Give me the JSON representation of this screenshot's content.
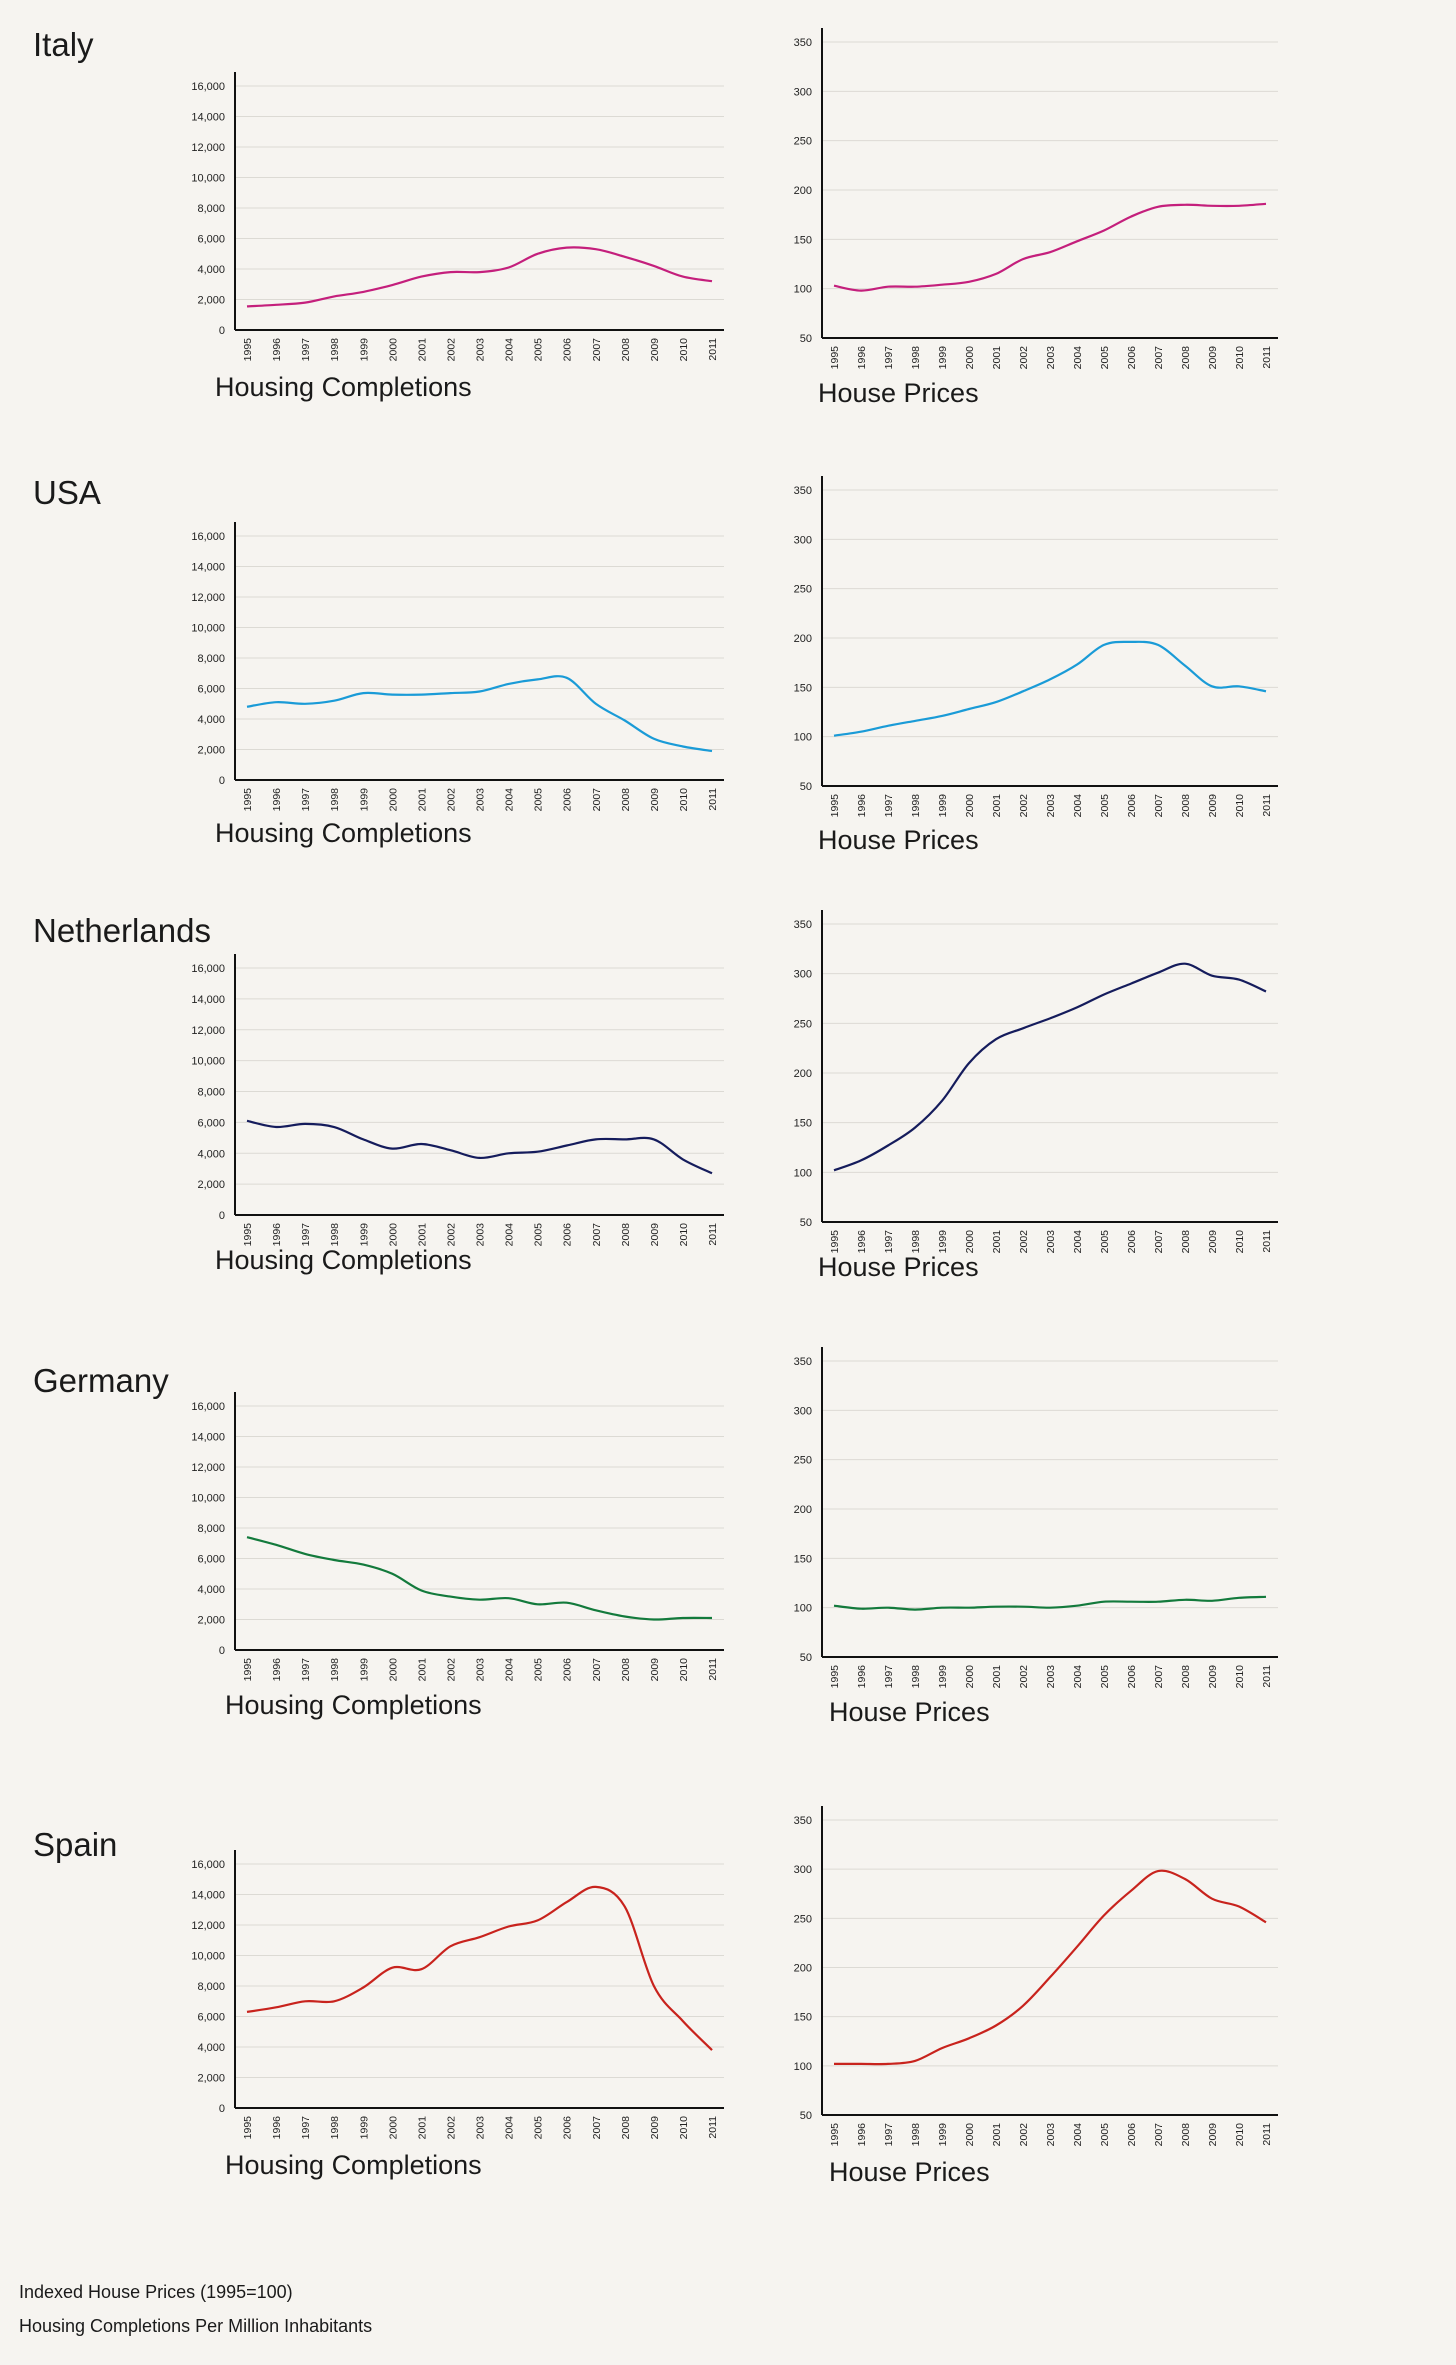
{
  "footnotes": {
    "house_prices_note": "Indexed House Prices (1995=100)",
    "completions_note": "Housing Completions Per Million Inhabitants"
  },
  "colors": {
    "Italy": "#c41f7c",
    "USA": "#1a9bd7",
    "Netherlands": "#151c5c",
    "Germany": "#137a3c",
    "Spain": "#c8231d",
    "background": "#f6f4f0",
    "grid": "#dcdad4"
  },
  "chart_data": [
    {
      "type": "line",
      "country": "Italy",
      "title": "Italy",
      "xlabel": "Housing Completions",
      "ylabel": "",
      "categories": [
        "1995",
        "1996",
        "1997",
        "1998",
        "1999",
        "2000",
        "2001",
        "2002",
        "2003",
        "2004",
        "2005",
        "2006",
        "2007",
        "2008",
        "2009",
        "2010",
        "2011"
      ],
      "yticks": [
        "0",
        "2,000",
        "4,000",
        "6,000",
        "8,000",
        "10,000",
        "12,000",
        "14,000",
        "16,000"
      ],
      "ylim": [
        0,
        16000
      ],
      "values": [
        1550,
        1650,
        1800,
        2200,
        2500,
        2950,
        3500,
        3800,
        3800,
        4100,
        5000,
        5400,
        5300,
        4800,
        4200,
        3500,
        3200
      ]
    },
    {
      "type": "line",
      "country": "Italy",
      "title": "",
      "xlabel": "House Prices",
      "ylabel": "",
      "categories": [
        "1995",
        "1996",
        "1997",
        "1998",
        "1999",
        "2000",
        "2001",
        "2002",
        "2003",
        "2004",
        "2005",
        "2006",
        "2007",
        "2008",
        "2009",
        "2010",
        "2011"
      ],
      "yticks": [
        "50",
        "100",
        "150",
        "200",
        "250",
        "300",
        "350"
      ],
      "ylim": [
        50,
        350
      ],
      "values": [
        103,
        98,
        102,
        102,
        104,
        107,
        115,
        130,
        137,
        148,
        159,
        173,
        183,
        185,
        184,
        184,
        186
      ]
    },
    {
      "type": "line",
      "country": "USA",
      "title": "USA",
      "xlabel": "Housing Completions",
      "ylabel": "",
      "categories": [
        "1995",
        "1996",
        "1997",
        "1998",
        "1999",
        "2000",
        "2001",
        "2002",
        "2003",
        "2004",
        "2005",
        "2006",
        "2007",
        "2008",
        "2009",
        "2010",
        "2011"
      ],
      "yticks": [
        "0",
        "2,000",
        "4,000",
        "6,000",
        "8,000",
        "10,000",
        "12,000",
        "14,000",
        "16,000"
      ],
      "ylim": [
        0,
        16000
      ],
      "values": [
        4800,
        5100,
        5000,
        5200,
        5700,
        5600,
        5600,
        5700,
        5800,
        6300,
        6600,
        6700,
        5000,
        3900,
        2700,
        2200,
        1900
      ]
    },
    {
      "type": "line",
      "country": "USA",
      "title": "",
      "xlabel": "House Prices",
      "ylabel": "",
      "categories": [
        "1995",
        "1996",
        "1997",
        "1998",
        "1999",
        "2000",
        "2001",
        "2002",
        "2003",
        "2004",
        "2005",
        "2006",
        "2007",
        "2008",
        "2009",
        "2010",
        "2011"
      ],
      "yticks": [
        "50",
        "100",
        "150",
        "200",
        "250",
        "300",
        "350"
      ],
      "ylim": [
        50,
        350
      ],
      "values": [
        101,
        105,
        111,
        116,
        121,
        128,
        135,
        146,
        158,
        173,
        193,
        196,
        193,
        172,
        151,
        151,
        146
      ]
    },
    {
      "type": "line",
      "country": "Netherlands",
      "title": "Netherlands",
      "xlabel": "Housing Completions",
      "ylabel": "",
      "categories": [
        "1995",
        "1996",
        "1997",
        "1998",
        "1999",
        "2000",
        "2001",
        "2002",
        "2003",
        "2004",
        "2005",
        "2006",
        "2007",
        "2008",
        "2009",
        "2010",
        "2011"
      ],
      "yticks": [
        "0",
        "2,000",
        "4,000",
        "6,000",
        "8,000",
        "10,000",
        "12,000",
        "14,000",
        "16,000"
      ],
      "ylim": [
        0,
        16000
      ],
      "values": [
        6100,
        5700,
        5900,
        5700,
        4900,
        4300,
        4600,
        4200,
        3700,
        4000,
        4100,
        4500,
        4900,
        4900,
        4900,
        3600,
        2700
      ]
    },
    {
      "type": "line",
      "country": "Netherlands",
      "title": "",
      "xlabel": "House Prices",
      "ylabel": "",
      "categories": [
        "1995",
        "1996",
        "1997",
        "1998",
        "1999",
        "2000",
        "2001",
        "2002",
        "2003",
        "2004",
        "2005",
        "2006",
        "2007",
        "2008",
        "2009",
        "2010",
        "2011"
      ],
      "yticks": [
        "50",
        "100",
        "150",
        "200",
        "250",
        "300",
        "350"
      ],
      "ylim": [
        50,
        350
      ],
      "values": [
        102,
        112,
        127,
        145,
        172,
        210,
        234,
        245,
        255,
        266,
        279,
        290,
        301,
        310,
        298,
        294,
        282
      ]
    },
    {
      "type": "line",
      "country": "Germany",
      "title": "Germany",
      "xlabel": "Housing Completions",
      "ylabel": "",
      "categories": [
        "1995",
        "1996",
        "1997",
        "1998",
        "1999",
        "2000",
        "2001",
        "2002",
        "2003",
        "2004",
        "2005",
        "2006",
        "2007",
        "2008",
        "2009",
        "2010",
        "2011"
      ],
      "yticks": [
        "0",
        "2,000",
        "4,000",
        "6,000",
        "8,000",
        "10,000",
        "12,000",
        "14,000",
        "16,000"
      ],
      "ylim": [
        0,
        16000
      ],
      "values": [
        7400,
        6900,
        6300,
        5900,
        5600,
        5000,
        3900,
        3500,
        3300,
        3400,
        3000,
        3100,
        2600,
        2200,
        2000,
        2100,
        2100
      ]
    },
    {
      "type": "line",
      "country": "Germany",
      "title": "",
      "xlabel": "House Prices",
      "ylabel": "",
      "categories": [
        "1995",
        "1996",
        "1997",
        "1998",
        "1999",
        "2000",
        "2001",
        "2002",
        "2003",
        "2004",
        "2005",
        "2006",
        "2007",
        "2008",
        "2009",
        "2010",
        "2011"
      ],
      "yticks": [
        "50",
        "100",
        "150",
        "200",
        "250",
        "300",
        "350"
      ],
      "ylim": [
        50,
        350
      ],
      "values": [
        102,
        99,
        100,
        98,
        100,
        100,
        101,
        101,
        100,
        102,
        106,
        106,
        106,
        108,
        107,
        110,
        111
      ]
    },
    {
      "type": "line",
      "country": "Spain",
      "title": "Spain",
      "xlabel": "Housing Completions",
      "ylabel": "",
      "categories": [
        "1995",
        "1996",
        "1997",
        "1998",
        "1999",
        "2000",
        "2001",
        "2002",
        "2003",
        "2004",
        "2005",
        "2006",
        "2007",
        "2008",
        "2009",
        "2010",
        "2011"
      ],
      "yticks": [
        "0",
        "2,000",
        "4,000",
        "6,000",
        "8,000",
        "10,000",
        "12,000",
        "14,000",
        "16,000"
      ],
      "ylim": [
        0,
        16000
      ],
      "values": [
        6300,
        6600,
        7000,
        7000,
        7900,
        9200,
        9100,
        10600,
        11200,
        11900,
        12300,
        13500,
        14500,
        13200,
        8000,
        5700,
        3800
      ]
    },
    {
      "type": "line",
      "country": "Spain",
      "title": "",
      "xlabel": "House Prices",
      "ylabel": "",
      "categories": [
        "1995",
        "1996",
        "1997",
        "1998",
        "1999",
        "2000",
        "2001",
        "2002",
        "2003",
        "2004",
        "2005",
        "2006",
        "2007",
        "2008",
        "2009",
        "2010",
        "2011"
      ],
      "yticks": [
        "50",
        "100",
        "150",
        "200",
        "250",
        "300",
        "350"
      ],
      "ylim": [
        50,
        350
      ],
      "values": [
        102,
        102,
        102,
        105,
        118,
        128,
        141,
        161,
        190,
        221,
        253,
        278,
        298,
        290,
        270,
        262,
        246
      ]
    }
  ]
}
